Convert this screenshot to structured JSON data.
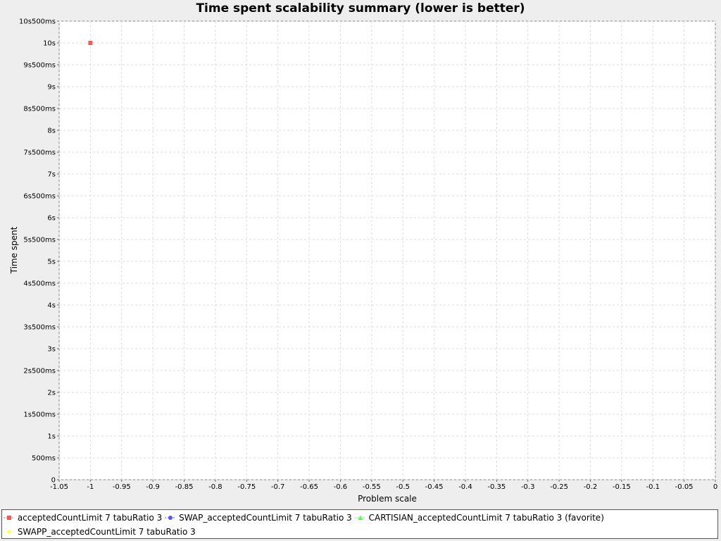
{
  "chart_data": {
    "type": "scatter",
    "title": "Time spent scalability summary (lower is better)",
    "xlabel": "Problem scale",
    "ylabel": "Time spent",
    "xlim": [
      -1.05,
      0
    ],
    "ylim": [
      0,
      10500
    ],
    "x_ticks": [
      -1.05,
      -1,
      -0.95,
      -0.9,
      -0.85,
      -0.8,
      -0.75,
      -0.7,
      -0.65,
      -0.6,
      -0.55,
      -0.5,
      -0.45,
      -0.4,
      -0.35,
      -0.3,
      -0.25,
      -0.2,
      -0.15,
      -0.1,
      -0.05,
      0
    ],
    "x_tick_labels": [
      "-1.05",
      "-1",
      "-0.95",
      "-0.9",
      "-0.85",
      "-0.8",
      "-0.75",
      "-0.7",
      "-0.65",
      "-0.6",
      "-0.55",
      "-0.5",
      "-0.45",
      "-0.4",
      "-0.35",
      "-0.3",
      "-0.25",
      "-0.2",
      "-0.15",
      "-0.1",
      "-0.05",
      "0"
    ],
    "y_ticks": [
      0,
      500,
      1000,
      1500,
      2000,
      2500,
      3000,
      3500,
      4000,
      4500,
      5000,
      5500,
      6000,
      6500,
      7000,
      7500,
      8000,
      8500,
      9000,
      9500,
      10000,
      10500
    ],
    "y_tick_labels": [
      "0",
      "500ms",
      "1s",
      "1s500ms",
      "2s",
      "2s500ms",
      "3s",
      "3s500ms",
      "4s",
      "4s500ms",
      "5s",
      "5s500ms",
      "6s",
      "6s500ms",
      "7s",
      "7s500ms",
      "8s",
      "8s500ms",
      "9s",
      "9s500ms",
      "10s",
      "10s500ms"
    ],
    "grid": true,
    "legend_position": "bottom",
    "series": [
      {
        "name": "acceptedCountLimit 7 tabuRatio 3",
        "color": "#ff5555",
        "marker": "square",
        "points": [
          {
            "x": -1,
            "y": 10000
          }
        ]
      },
      {
        "name": "SWAP_acceptedCountLimit 7 tabuRatio 3",
        "color": "#5555ff",
        "marker": "circle",
        "points": []
      },
      {
        "name": "CARTISIAN_acceptedCountLimit 7 tabuRatio 3 (favorite)",
        "color": "#55ff55",
        "marker": "triangle",
        "points": []
      },
      {
        "name": "SWAPP_acceptedCountLimit 7 tabuRatio 3",
        "color": "#ffff55",
        "marker": "diamond",
        "points": []
      }
    ]
  }
}
